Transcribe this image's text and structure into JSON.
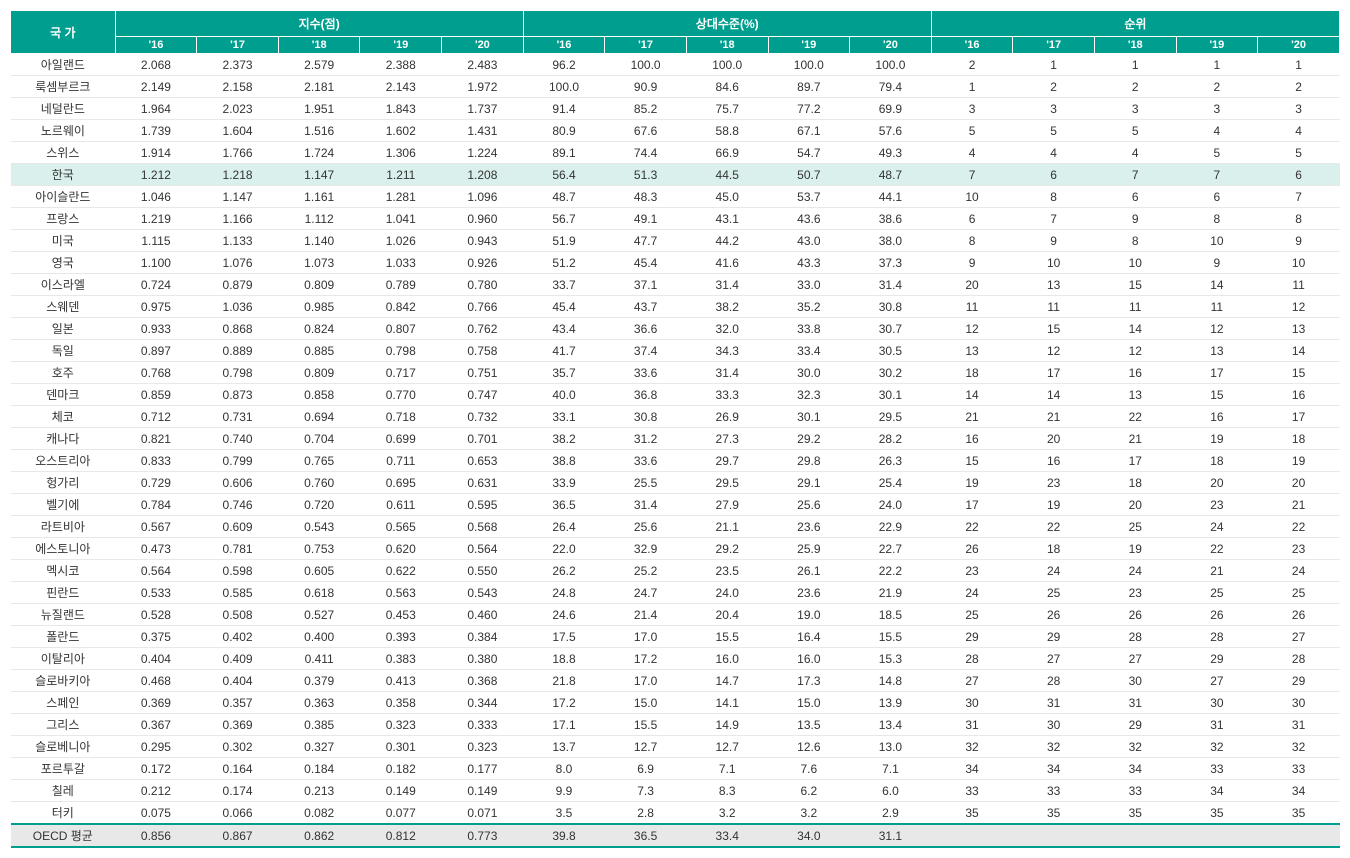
{
  "table": {
    "type": "table",
    "colors": {
      "header_bg": "#009e8f",
      "header_text": "#ffffff",
      "highlight_bg": "#daf0ed",
      "footer_bg": "#e8e8e8",
      "row_border": "#e8e8e8",
      "text": "#333333"
    },
    "header": {
      "country": "국  가",
      "group1": "지수(점)",
      "group2": "상대수준(%)",
      "group3": "순위",
      "years": [
        "'16",
        "'17",
        "'18",
        "'19",
        "'20"
      ]
    },
    "rows": [
      {
        "country": "아일랜드",
        "idx": [
          "2.068",
          "2.373",
          "2.579",
          "2.388",
          "2.483"
        ],
        "rel": [
          "96.2",
          "100.0",
          "100.0",
          "100.0",
          "100.0"
        ],
        "rank": [
          "2",
          "1",
          "1",
          "1",
          "1"
        ]
      },
      {
        "country": "룩셈부르크",
        "idx": [
          "2.149",
          "2.158",
          "2.181",
          "2.143",
          "1.972"
        ],
        "rel": [
          "100.0",
          "90.9",
          "84.6",
          "89.7",
          "79.4"
        ],
        "rank": [
          "1",
          "2",
          "2",
          "2",
          "2"
        ]
      },
      {
        "country": "네덜란드",
        "idx": [
          "1.964",
          "2.023",
          "1.951",
          "1.843",
          "1.737"
        ],
        "rel": [
          "91.4",
          "85.2",
          "75.7",
          "77.2",
          "69.9"
        ],
        "rank": [
          "3",
          "3",
          "3",
          "3",
          "3"
        ]
      },
      {
        "country": "노르웨이",
        "idx": [
          "1.739",
          "1.604",
          "1.516",
          "1.602",
          "1.431"
        ],
        "rel": [
          "80.9",
          "67.6",
          "58.8",
          "67.1",
          "57.6"
        ],
        "rank": [
          "5",
          "5",
          "5",
          "4",
          "4"
        ]
      },
      {
        "country": "스위스",
        "idx": [
          "1.914",
          "1.766",
          "1.724",
          "1.306",
          "1.224"
        ],
        "rel": [
          "89.1",
          "74.4",
          "66.9",
          "54.7",
          "49.3"
        ],
        "rank": [
          "4",
          "4",
          "4",
          "5",
          "5"
        ]
      },
      {
        "country": "한국",
        "highlight": true,
        "idx": [
          "1.212",
          "1.218",
          "1.147",
          "1.211",
          "1.208"
        ],
        "rel": [
          "56.4",
          "51.3",
          "44.5",
          "50.7",
          "48.7"
        ],
        "rank": [
          "7",
          "6",
          "7",
          "7",
          "6"
        ]
      },
      {
        "country": "아이슬란드",
        "idx": [
          "1.046",
          "1.147",
          "1.161",
          "1.281",
          "1.096"
        ],
        "rel": [
          "48.7",
          "48.3",
          "45.0",
          "53.7",
          "44.1"
        ],
        "rank": [
          "10",
          "8",
          "6",
          "6",
          "7"
        ]
      },
      {
        "country": "프랑스",
        "idx": [
          "1.219",
          "1.166",
          "1.112",
          "1.041",
          "0.960"
        ],
        "rel": [
          "56.7",
          "49.1",
          "43.1",
          "43.6",
          "38.6"
        ],
        "rank": [
          "6",
          "7",
          "9",
          "8",
          "8"
        ]
      },
      {
        "country": "미국",
        "idx": [
          "1.115",
          "1.133",
          "1.140",
          "1.026",
          "0.943"
        ],
        "rel": [
          "51.9",
          "47.7",
          "44.2",
          "43.0",
          "38.0"
        ],
        "rank": [
          "8",
          "9",
          "8",
          "10",
          "9"
        ]
      },
      {
        "country": "영국",
        "idx": [
          "1.100",
          "1.076",
          "1.073",
          "1.033",
          "0.926"
        ],
        "rel": [
          "51.2",
          "45.4",
          "41.6",
          "43.3",
          "37.3"
        ],
        "rank": [
          "9",
          "10",
          "10",
          "9",
          "10"
        ]
      },
      {
        "country": "이스라엘",
        "idx": [
          "0.724",
          "0.879",
          "0.809",
          "0.789",
          "0.780"
        ],
        "rel": [
          "33.7",
          "37.1",
          "31.4",
          "33.0",
          "31.4"
        ],
        "rank": [
          "20",
          "13",
          "15",
          "14",
          "11"
        ]
      },
      {
        "country": "스웨덴",
        "idx": [
          "0.975",
          "1.036",
          "0.985",
          "0.842",
          "0.766"
        ],
        "rel": [
          "45.4",
          "43.7",
          "38.2",
          "35.2",
          "30.8"
        ],
        "rank": [
          "11",
          "11",
          "11",
          "11",
          "12"
        ]
      },
      {
        "country": "일본",
        "idx": [
          "0.933",
          "0.868",
          "0.824",
          "0.807",
          "0.762"
        ],
        "rel": [
          "43.4",
          "36.6",
          "32.0",
          "33.8",
          "30.7"
        ],
        "rank": [
          "12",
          "15",
          "14",
          "12",
          "13"
        ]
      },
      {
        "country": "독일",
        "idx": [
          "0.897",
          "0.889",
          "0.885",
          "0.798",
          "0.758"
        ],
        "rel": [
          "41.7",
          "37.4",
          "34.3",
          "33.4",
          "30.5"
        ],
        "rank": [
          "13",
          "12",
          "12",
          "13",
          "14"
        ]
      },
      {
        "country": "호주",
        "idx": [
          "0.768",
          "0.798",
          "0.809",
          "0.717",
          "0.751"
        ],
        "rel": [
          "35.7",
          "33.6",
          "31.4",
          "30.0",
          "30.2"
        ],
        "rank": [
          "18",
          "17",
          "16",
          "17",
          "15"
        ]
      },
      {
        "country": "덴마크",
        "idx": [
          "0.859",
          "0.873",
          "0.858",
          "0.770",
          "0.747"
        ],
        "rel": [
          "40.0",
          "36.8",
          "33.3",
          "32.3",
          "30.1"
        ],
        "rank": [
          "14",
          "14",
          "13",
          "15",
          "16"
        ]
      },
      {
        "country": "체코",
        "idx": [
          "0.712",
          "0.731",
          "0.694",
          "0.718",
          "0.732"
        ],
        "rel": [
          "33.1",
          "30.8",
          "26.9",
          "30.1",
          "29.5"
        ],
        "rank": [
          "21",
          "21",
          "22",
          "16",
          "17"
        ]
      },
      {
        "country": "캐나다",
        "idx": [
          "0.821",
          "0.740",
          "0.704",
          "0.699",
          "0.701"
        ],
        "rel": [
          "38.2",
          "31.2",
          "27.3",
          "29.2",
          "28.2"
        ],
        "rank": [
          "16",
          "20",
          "21",
          "19",
          "18"
        ]
      },
      {
        "country": "오스트리아",
        "idx": [
          "0.833",
          "0.799",
          "0.765",
          "0.711",
          "0.653"
        ],
        "rel": [
          "38.8",
          "33.6",
          "29.7",
          "29.8",
          "26.3"
        ],
        "rank": [
          "15",
          "16",
          "17",
          "18",
          "19"
        ]
      },
      {
        "country": "헝가리",
        "idx": [
          "0.729",
          "0.606",
          "0.760",
          "0.695",
          "0.631"
        ],
        "rel": [
          "33.9",
          "25.5",
          "29.5",
          "29.1",
          "25.4"
        ],
        "rank": [
          "19",
          "23",
          "18",
          "20",
          "20"
        ]
      },
      {
        "country": "벨기에",
        "idx": [
          "0.784",
          "0.746",
          "0.720",
          "0.611",
          "0.595"
        ],
        "rel": [
          "36.5",
          "31.4",
          "27.9",
          "25.6",
          "24.0"
        ],
        "rank": [
          "17",
          "19",
          "20",
          "23",
          "21"
        ]
      },
      {
        "country": "라트비아",
        "idx": [
          "0.567",
          "0.609",
          "0.543",
          "0.565",
          "0.568"
        ],
        "rel": [
          "26.4",
          "25.6",
          "21.1",
          "23.6",
          "22.9"
        ],
        "rank": [
          "22",
          "22",
          "25",
          "24",
          "22"
        ]
      },
      {
        "country": "에스토니아",
        "idx": [
          "0.473",
          "0.781",
          "0.753",
          "0.620",
          "0.564"
        ],
        "rel": [
          "22.0",
          "32.9",
          "29.2",
          "25.9",
          "22.7"
        ],
        "rank": [
          "26",
          "18",
          "19",
          "22",
          "23"
        ]
      },
      {
        "country": "멕시코",
        "idx": [
          "0.564",
          "0.598",
          "0.605",
          "0.622",
          "0.550"
        ],
        "rel": [
          "26.2",
          "25.2",
          "23.5",
          "26.1",
          "22.2"
        ],
        "rank": [
          "23",
          "24",
          "24",
          "21",
          "24"
        ]
      },
      {
        "country": "핀란드",
        "idx": [
          "0.533",
          "0.585",
          "0.618",
          "0.563",
          "0.543"
        ],
        "rel": [
          "24.8",
          "24.7",
          "24.0",
          "23.6",
          "21.9"
        ],
        "rank": [
          "24",
          "25",
          "23",
          "25",
          "25"
        ]
      },
      {
        "country": "뉴질랜드",
        "idx": [
          "0.528",
          "0.508",
          "0.527",
          "0.453",
          "0.460"
        ],
        "rel": [
          "24.6",
          "21.4",
          "20.4",
          "19.0",
          "18.5"
        ],
        "rank": [
          "25",
          "26",
          "26",
          "26",
          "26"
        ]
      },
      {
        "country": "폴란드",
        "idx": [
          "0.375",
          "0.402",
          "0.400",
          "0.393",
          "0.384"
        ],
        "rel": [
          "17.5",
          "17.0",
          "15.5",
          "16.4",
          "15.5"
        ],
        "rank": [
          "29",
          "29",
          "28",
          "28",
          "27"
        ]
      },
      {
        "country": "이탈리아",
        "idx": [
          "0.404",
          "0.409",
          "0.411",
          "0.383",
          "0.380"
        ],
        "rel": [
          "18.8",
          "17.2",
          "16.0",
          "16.0",
          "15.3"
        ],
        "rank": [
          "28",
          "27",
          "27",
          "29",
          "28"
        ]
      },
      {
        "country": "슬로바키아",
        "idx": [
          "0.468",
          "0.404",
          "0.379",
          "0.413",
          "0.368"
        ],
        "rel": [
          "21.8",
          "17.0",
          "14.7",
          "17.3",
          "14.8"
        ],
        "rank": [
          "27",
          "28",
          "30",
          "27",
          "29"
        ]
      },
      {
        "country": "스페인",
        "idx": [
          "0.369",
          "0.357",
          "0.363",
          "0.358",
          "0.344"
        ],
        "rel": [
          "17.2",
          "15.0",
          "14.1",
          "15.0",
          "13.9"
        ],
        "rank": [
          "30",
          "31",
          "31",
          "30",
          "30"
        ]
      },
      {
        "country": "그리스",
        "idx": [
          "0.367",
          "0.369",
          "0.385",
          "0.323",
          "0.333"
        ],
        "rel": [
          "17.1",
          "15.5",
          "14.9",
          "13.5",
          "13.4"
        ],
        "rank": [
          "31",
          "30",
          "29",
          "31",
          "31"
        ]
      },
      {
        "country": "슬로베니아",
        "idx": [
          "0.295",
          "0.302",
          "0.327",
          "0.301",
          "0.323"
        ],
        "rel": [
          "13.7",
          "12.7",
          "12.7",
          "12.6",
          "13.0"
        ],
        "rank": [
          "32",
          "32",
          "32",
          "32",
          "32"
        ]
      },
      {
        "country": "포르투갈",
        "idx": [
          "0.172",
          "0.164",
          "0.184",
          "0.182",
          "0.177"
        ],
        "rel": [
          "8.0",
          "6.9",
          "7.1",
          "7.6",
          "7.1"
        ],
        "rank": [
          "34",
          "34",
          "34",
          "33",
          "33"
        ]
      },
      {
        "country": "칠레",
        "idx": [
          "0.212",
          "0.174",
          "0.213",
          "0.149",
          "0.149"
        ],
        "rel": [
          "9.9",
          "7.3",
          "8.3",
          "6.2",
          "6.0"
        ],
        "rank": [
          "33",
          "33",
          "33",
          "34",
          "34"
        ]
      },
      {
        "country": "터키",
        "idx": [
          "0.075",
          "0.066",
          "0.082",
          "0.077",
          "0.071"
        ],
        "rel": [
          "3.5",
          "2.8",
          "3.2",
          "3.2",
          "2.9"
        ],
        "rank": [
          "35",
          "35",
          "35",
          "35",
          "35"
        ]
      }
    ],
    "footer": {
      "label": "OECD  평균",
      "idx": [
        "0.856",
        "0.867",
        "0.862",
        "0.812",
        "0.773"
      ],
      "rel": [
        "39.8",
        "36.5",
        "33.4",
        "34.0",
        "31.1"
      ],
      "rank": [
        "",
        "",
        "",
        "",
        ""
      ]
    }
  }
}
